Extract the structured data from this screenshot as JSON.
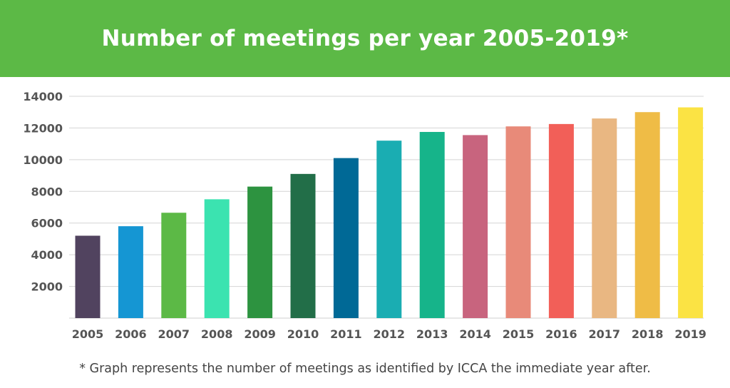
{
  "header": {
    "title": "Number of meetings per year 2005-2019*",
    "background": "#5cb946"
  },
  "chart_data": {
    "type": "bar",
    "title": "Number of meetings per year 2005-2019*",
    "xlabel": "",
    "ylabel": "",
    "categories": [
      "2005",
      "2006",
      "2007",
      "2008",
      "2009",
      "2010",
      "2011",
      "2012",
      "2013",
      "2014",
      "2015",
      "2016",
      "2017",
      "2018",
      "2019"
    ],
    "values": [
      5200,
      5800,
      6650,
      7500,
      8300,
      9100,
      10100,
      11200,
      11750,
      11550,
      12100,
      12250,
      12600,
      13000,
      13300
    ],
    "colors": [
      "#51435f",
      "#1596d3",
      "#5cb946",
      "#3be3b0",
      "#2d9340",
      "#226e48",
      "#006996",
      "#1aadb2",
      "#16b48a",
      "#c8647e",
      "#e88a79",
      "#f25f58",
      "#e9b782",
      "#efbc46",
      "#fbe344"
    ],
    "ylim": [
      0,
      14000
    ],
    "yticks": [
      "2000",
      "4000",
      "6000",
      "8000",
      "10000",
      "12000",
      "14000"
    ],
    "grid": true,
    "legend": "none"
  },
  "footnote": "* Graph represents the number of meetings as identified by ICCA the immediate year after."
}
